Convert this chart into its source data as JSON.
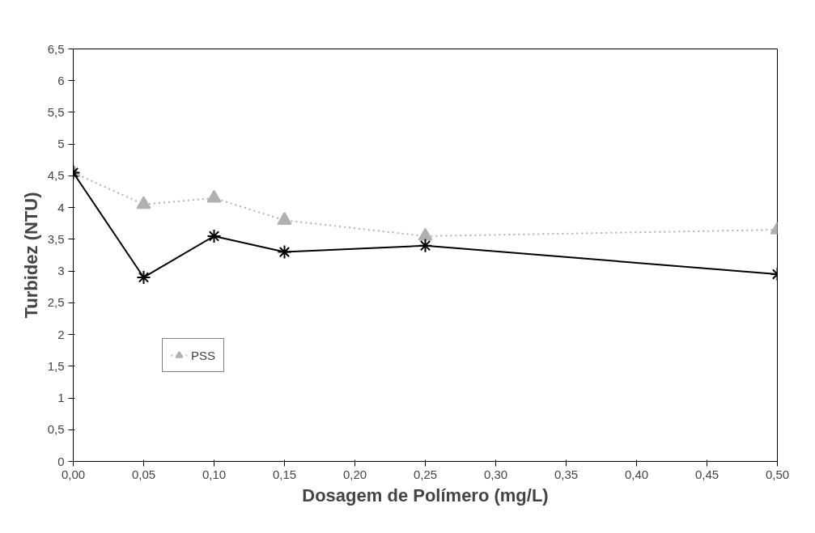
{
  "chart_data": {
    "type": "line",
    "xlabel": "Dosagem de Polímero (mg/L)",
    "ylabel": "Turbidez (NTU)",
    "x": [
      0.0,
      0.05,
      0.1,
      0.15,
      0.25,
      0.5
    ],
    "series": [
      {
        "name": "PSS",
        "color": "#b0b0b0",
        "marker": "triangle",
        "line_style": "dotted",
        "values": [
          4.55,
          4.05,
          4.15,
          3.8,
          3.55,
          3.65
        ]
      },
      {
        "color": "#000000",
        "marker": "cross",
        "line_style": "solid",
        "values": [
          4.55,
          2.9,
          3.55,
          3.3,
          3.4,
          2.95
        ]
      }
    ],
    "xlim": [
      0,
      0.5
    ],
    "ylim": [
      0,
      6.5
    ],
    "xticks": [
      {
        "value": 0,
        "label": "0,00"
      },
      {
        "value": 0.05,
        "label": "0,05"
      },
      {
        "value": 0.1,
        "label": "0,10"
      },
      {
        "value": 0.15,
        "label": "0,15"
      },
      {
        "value": 0.2,
        "label": "0,20"
      },
      {
        "value": 0.25,
        "label": "0,25"
      },
      {
        "value": 0.3,
        "label": "0,30"
      },
      {
        "value": 0.35,
        "label": "0,35"
      },
      {
        "value": 0.4,
        "label": "0,40"
      },
      {
        "value": 0.45,
        "label": "0,45"
      },
      {
        "value": 0.5,
        "label": "0,50"
      }
    ],
    "yticks": [
      0,
      {
        "value": 0.5,
        "label": "0,5"
      },
      1,
      {
        "value": 1.5,
        "label": "1,5"
      },
      2,
      {
        "value": 2.5,
        "label": "2,5"
      },
      3,
      {
        "value": 3.5,
        "label": "3,5"
      },
      4,
      {
        "value": 4.5,
        "label": "4,5"
      },
      5,
      {
        "value": 5.5,
        "label": "5,5"
      },
      6,
      {
        "value": 6.5,
        "label": "6,5"
      }
    ],
    "grid": false,
    "legend": "bottom left"
  }
}
